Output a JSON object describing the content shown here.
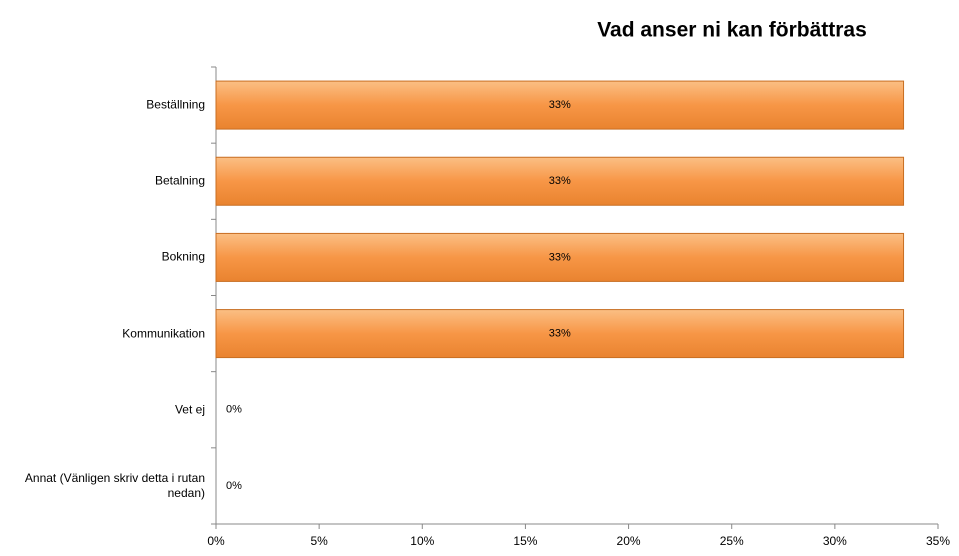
{
  "chart_data": {
    "type": "bar",
    "orientation": "horizontal",
    "title": "Vad anser ni kan förbättras",
    "categories": [
      "Beställning",
      "Betalning",
      "Bokning",
      "Kommunikation",
      "Vet ej",
      "Annat (Vänligen skriv detta i rutan nedan)"
    ],
    "values": [
      33.33,
      33.33,
      33.33,
      33.33,
      0,
      0
    ],
    "value_labels": [
      "33%",
      "33%",
      "33%",
      "33%",
      "0%",
      "0%"
    ],
    "color": "#f79646",
    "xlim": [
      0,
      35
    ],
    "xticks": [
      {
        "value": 0,
        "label": "0%"
      },
      {
        "value": 5,
        "label": "5%"
      },
      {
        "value": 10,
        "label": "10%"
      },
      {
        "value": 15,
        "label": "15%"
      },
      {
        "value": 20,
        "label": "20%"
      },
      {
        "value": 25,
        "label": "25%"
      },
      {
        "value": 30,
        "label": "30%"
      },
      {
        "value": 35,
        "label": "35%"
      }
    ],
    "grid": false
  }
}
